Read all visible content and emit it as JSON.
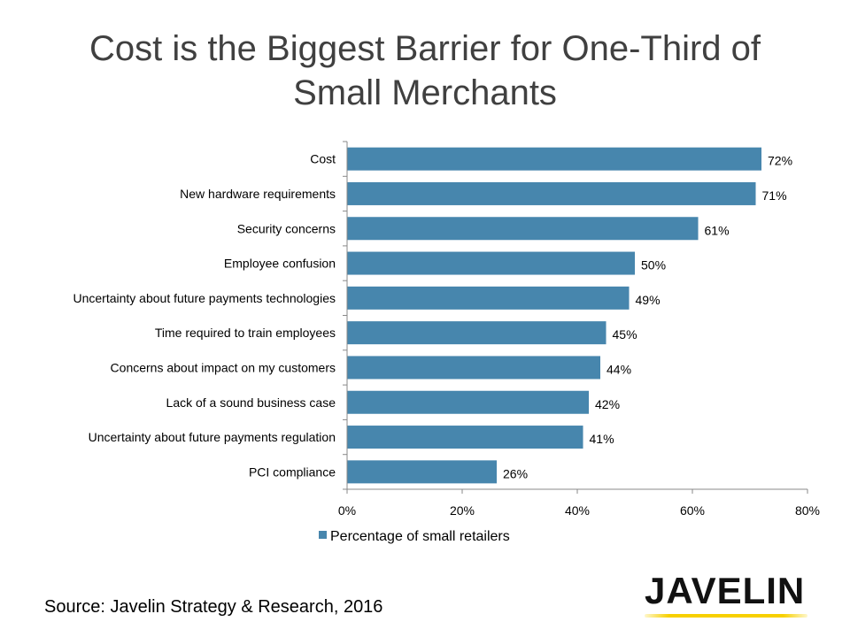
{
  "chart_data": {
    "type": "bar",
    "orientation": "horizontal",
    "title": "Cost is the Biggest Barrier for One-Third of Small Merchants",
    "title_lines": [
      "Cost is the Biggest Barrier for One-Third of",
      "Small Merchants"
    ],
    "categories": [
      "Cost",
      "New hardware requirements",
      "Security concerns",
      "Employee confusion",
      "Uncertainty about future payments technologies",
      "Time required to train employees",
      "Concerns about impact on my customers",
      "Lack of a sound business case",
      "Uncertainty about future payments regulation",
      "PCI compliance"
    ],
    "series": [
      {
        "name": "Percentage of small retailers",
        "values": [
          72,
          71,
          61,
          50,
          49,
          45,
          44,
          42,
          41,
          26
        ],
        "color": "#4786ad"
      }
    ],
    "data_labels": [
      "72%",
      "71%",
      "61%",
      "50%",
      "49%",
      "45%",
      "44%",
      "42%",
      "41%",
      "26%"
    ],
    "xlim": [
      0,
      80
    ],
    "xticks": [
      0,
      20,
      40,
      60,
      80
    ],
    "xtick_labels": [
      "0%",
      "20%",
      "40%",
      "60%",
      "80%"
    ],
    "xlabel": "",
    "ylabel": "",
    "grid": false,
    "legend": "bottom"
  },
  "footer": {
    "source": "Source: Javelin Strategy & Research, 2016",
    "logo": "JAVELIN"
  }
}
